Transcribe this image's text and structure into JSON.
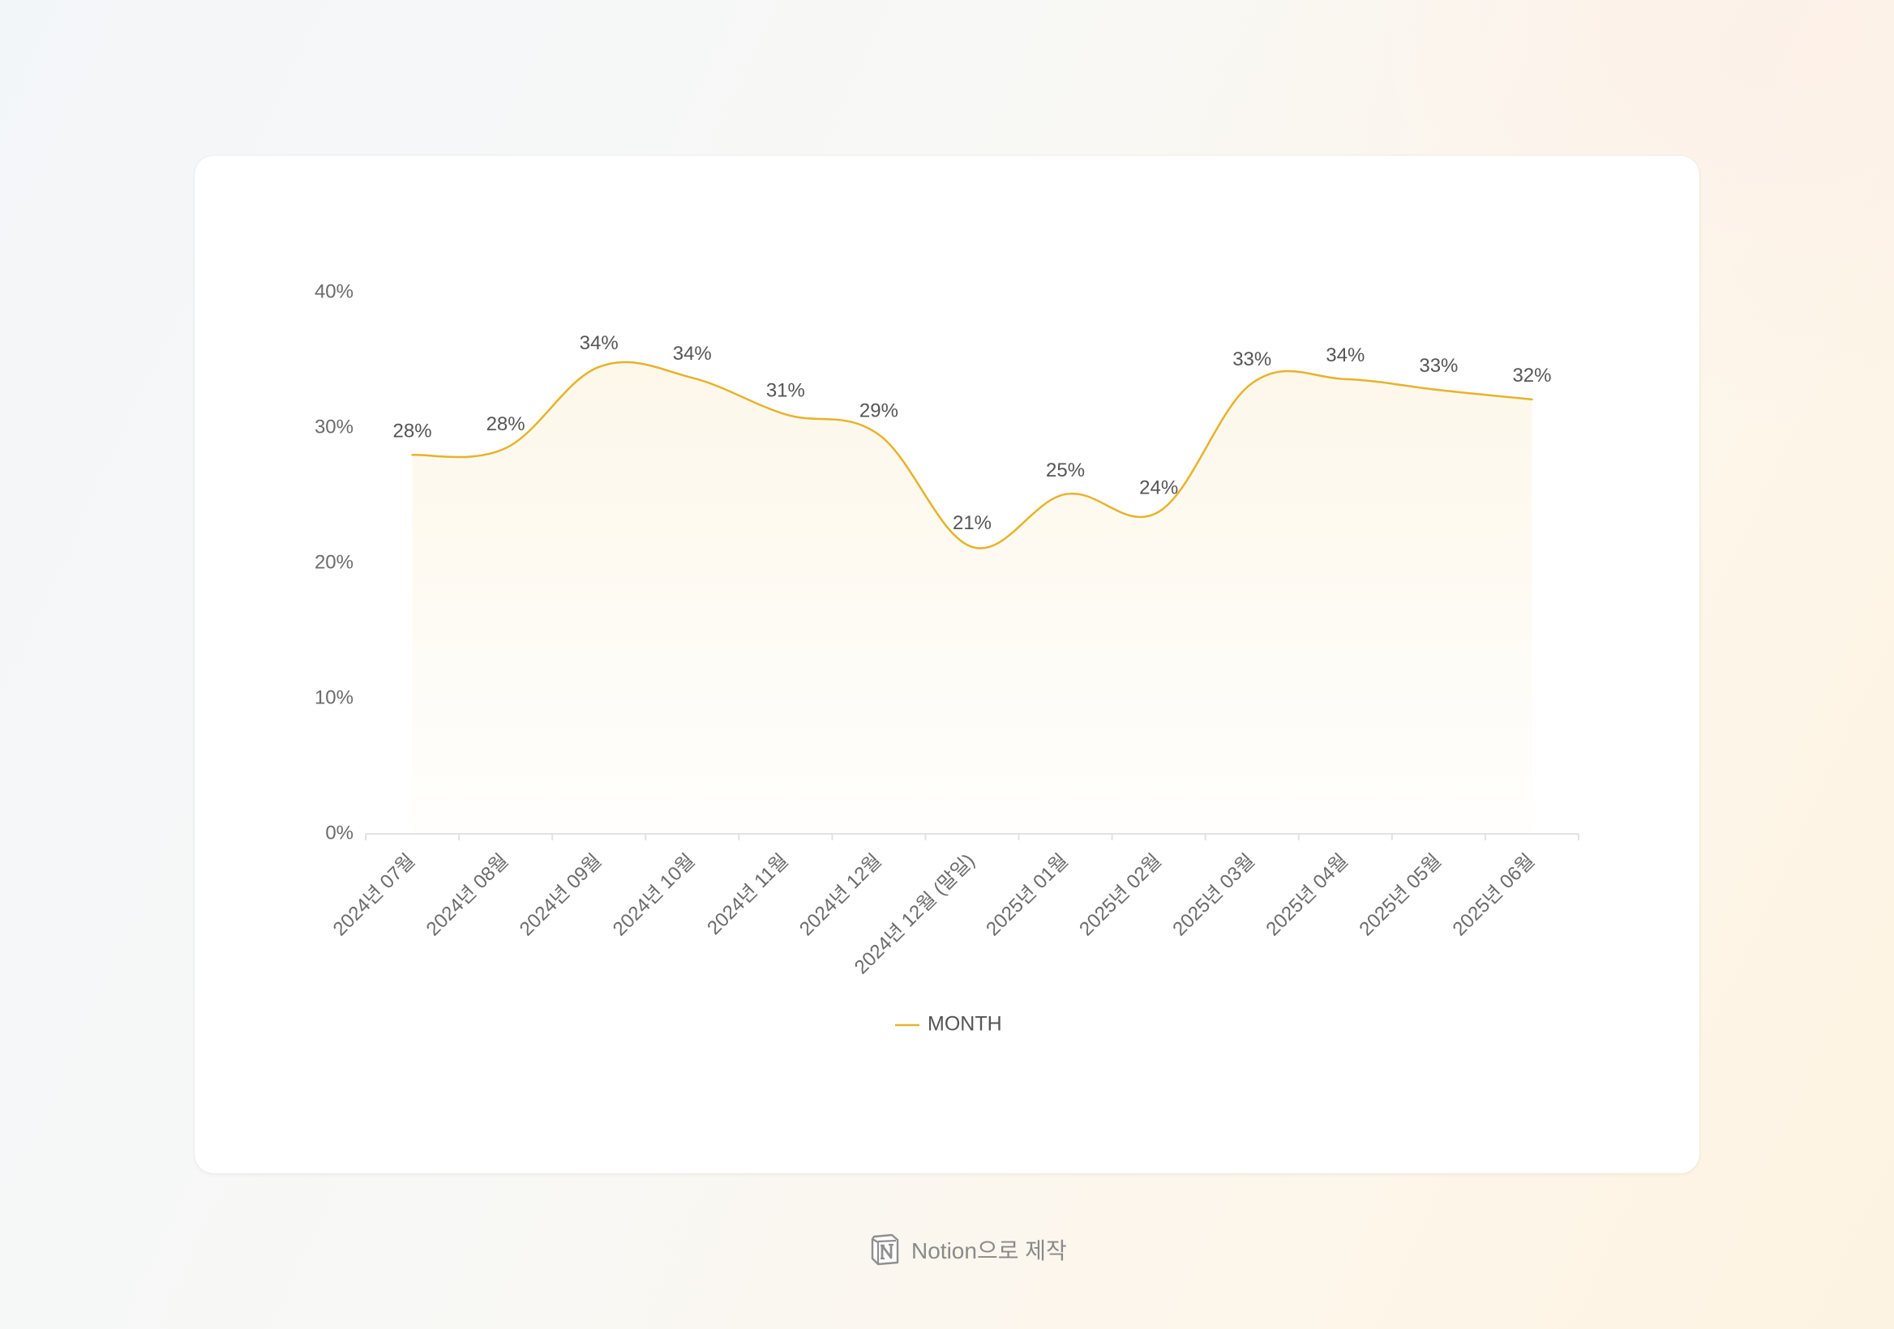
{
  "chart_data": {
    "type": "area",
    "title": "",
    "xlabel": "",
    "ylabel": "",
    "categories": [
      "2024년 07월",
      "2024년 08월",
      "2024년 09월",
      "2024년 10월",
      "2024년 11월",
      "2024년 12월",
      "2024년 12월 (말일)",
      "2025년 01월",
      "2025년 02월",
      "2025년 03월",
      "2025년 04월",
      "2025년 05월",
      "2025년 06월"
    ],
    "series": [
      {
        "name": "MONTH",
        "color": "#e8b22a",
        "values": [
          28,
          28.5,
          34.5,
          33.7,
          31,
          29.5,
          21.2,
          25.1,
          23.8,
          33.3,
          33.6,
          32.8,
          32.1
        ],
        "labels": [
          "28%",
          "28%",
          "34%",
          "34%",
          "31%",
          "29%",
          "21%",
          "25%",
          "24%",
          "33%",
          "34%",
          "33%",
          "32%"
        ]
      }
    ],
    "ylim": [
      0,
      40
    ],
    "y_ticks": [
      0,
      10,
      20,
      30,
      40
    ],
    "y_tick_labels": [
      "0%",
      "10%",
      "20%",
      "30%",
      "40%"
    ],
    "grid": false,
    "legend": "bottom-center",
    "smooth": true
  },
  "footer": {
    "text": "Notion으로 제작",
    "icon": "notion-logo-icon"
  }
}
